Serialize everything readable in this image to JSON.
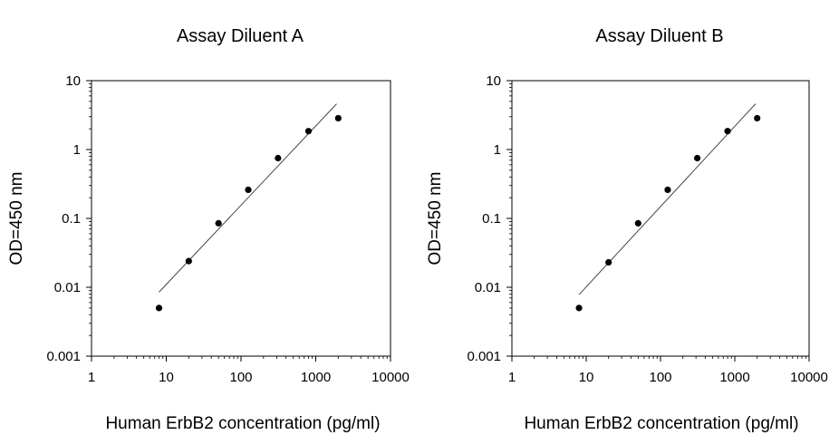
{
  "chart_data": [
    {
      "type": "scatter",
      "title": "Assay Diluent A",
      "xlabel": "Human ErbB2 concentration (pg/ml)",
      "ylabel": "OD=450 nm",
      "xscale": "log",
      "yscale": "log",
      "xlim": [
        1,
        10000
      ],
      "ylim": [
        0.001,
        10
      ],
      "xticks": [
        "1",
        "10",
        "100",
        "1000",
        "10000"
      ],
      "yticks": [
        "0.001",
        "0.01",
        "0.1",
        "1",
        "10"
      ],
      "grid": false,
      "points": {
        "x": [
          8,
          20,
          50,
          125,
          312.5,
          800,
          2000
        ],
        "y": [
          0.005,
          0.024,
          0.085,
          0.26,
          0.75,
          1.85,
          2.85
        ]
      },
      "fit_line": {
        "x": [
          8,
          1900
        ],
        "y": [
          0.0085,
          4.6
        ]
      }
    },
    {
      "type": "scatter",
      "title": "Assay Diluent B",
      "xlabel": "Human ErbB2 concentration (pg/ml)",
      "ylabel": "OD=450 nm",
      "xscale": "log",
      "yscale": "log",
      "xlim": [
        1,
        10000
      ],
      "ylim": [
        0.001,
        10
      ],
      "xticks": [
        "1",
        "10",
        "100",
        "1000",
        "10000"
      ],
      "yticks": [
        "0.001",
        "0.01",
        "0.1",
        "1",
        "10"
      ],
      "grid": false,
      "points": {
        "x": [
          8,
          20,
          50,
          125,
          312.5,
          800,
          2000
        ],
        "y": [
          0.005,
          0.023,
          0.085,
          0.26,
          0.75,
          1.85,
          2.85
        ]
      },
      "fit_line": {
        "x": [
          8,
          1900
        ],
        "y": [
          0.0078,
          4.6
        ]
      }
    }
  ]
}
